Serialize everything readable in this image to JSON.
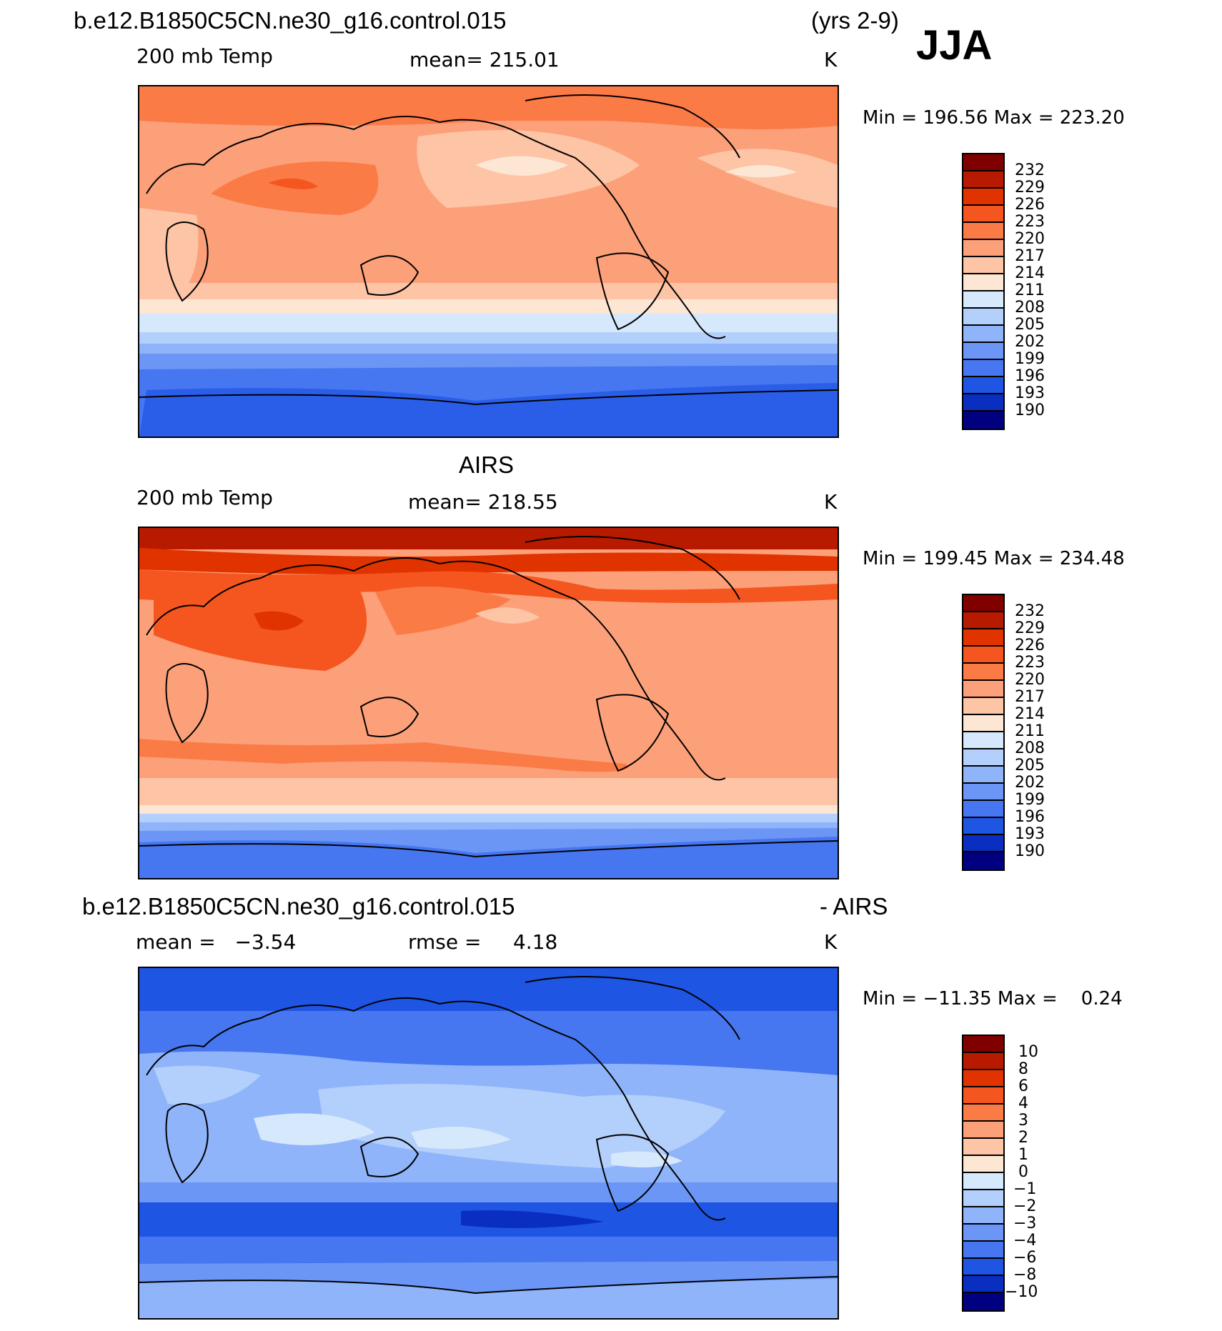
{
  "header": {
    "case": "b.e12.B1850C5CN.ne30_g16.control.015",
    "years": "(yrs 2-9)",
    "season": "JJA"
  },
  "panels": [
    {
      "title": "",
      "left": "200 mb Temp",
      "center": "mean= 215.01",
      "right": "K",
      "minmax": "Min = 196.56 Max = 223.20",
      "levels": [
        "232",
        "229",
        "226",
        "223",
        "220",
        "217",
        "214",
        "211",
        "208",
        "205",
        "202",
        "199",
        "196",
        "193",
        "190"
      ]
    },
    {
      "title": "AIRS",
      "left": "200 mb Temp",
      "center": "mean= 218.55",
      "right": "K",
      "minmax": "Min = 199.45 Max = 234.48",
      "levels": [
        "232",
        "229",
        "226",
        "223",
        "220",
        "217",
        "214",
        "211",
        "208",
        "205",
        "202",
        "199",
        "196",
        "193",
        "190"
      ]
    },
    {
      "title_left": "b.e12.B1850C5CN.ne30_g16.control.015",
      "title_right": "- AIRS",
      "left": "mean =   −3.54",
      "center": "rmse =     4.18",
      "right": "K",
      "minmax": "Min = −11.35 Max =    0.24",
      "levels": [
        "10",
        "8",
        "6",
        "4",
        "3",
        "2",
        "1",
        "0",
        "−1",
        "−2",
        "−3",
        "−4",
        "−6",
        "−8",
        "−10"
      ]
    }
  ],
  "colors": {
    "palette": [
      "#800000",
      "#b81a00",
      "#e03300",
      "#f5561f",
      "#fb7b47",
      "#fca07a",
      "#fdc4a6",
      "#fde6d3",
      "#d6e8fb",
      "#b3cffb",
      "#8fb4fa",
      "#6b96f6",
      "#4677f0",
      "#1f55e3",
      "#0a2fc0",
      "#001a8c",
      "#000080"
    ]
  }
}
